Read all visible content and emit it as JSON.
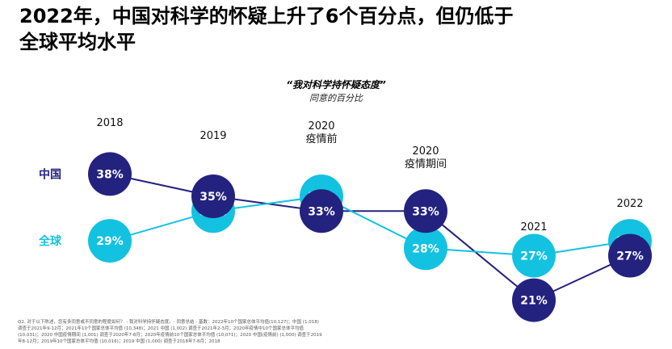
{
  "headline": {
    "line1": "2022年，中国对科学的怀疑上升了6个百分点，但仍低于",
    "line2": "全球平均水平"
  },
  "chart_data": {
    "type": "line",
    "title": "“我对科学持怀疑态度”",
    "subtitle": "同意的百分比",
    "categories": [
      [
        "2018"
      ],
      [
        "2019"
      ],
      [
        "2020",
        "疫情前"
      ],
      [
        "2020",
        "疫情期间"
      ],
      [
        "2021"
      ],
      [
        "2022"
      ]
    ],
    "series": [
      {
        "name": "中国",
        "values": [
          38,
          35,
          33,
          33,
          21,
          27
        ],
        "labels": [
          "38%",
          "35%",
          "33%",
          "33%",
          "21%",
          "27%"
        ],
        "color": "#24227f",
        "label_color": "#24227f"
      },
      {
        "name": "全球",
        "values": [
          29,
          33,
          35,
          28,
          27,
          29
        ],
        "labels": [
          "29%",
          "33%",
          "35%",
          "28%",
          "27%",
          "29%"
        ],
        "color": "#13c2e0",
        "label_color": "#13c2e0"
      }
    ],
    "ylim": [
      19,
      40
    ],
    "grid": false,
    "legend": "left"
  },
  "footnote": "Q2. 对于以下陈述，您有多同意或不同意的程度如何？ - 我对科学持怀疑态度。- 同意总结 - 基数：2022年10个国家总体平均值(10,127)；中国 (1,018) 调查于2021年9-12月；2021年10个国家总体平均值 (10,348)；2021 中国 (1,002) 调查于2021年2-3月；2020年疫情中10个国家总体平均值 (10,031)；2020 中国疫情期间 (1,001) 调查于2020年7-8月；2020年疫情前10个国家总体平均值 (10,071)；2020 中国(疫情前) (1,000) 调查于2019年8-12月；2019年10个国家总体平均值 (10,016)；2019 中国 (1,000) 调查于2018年7-8月；2018"
}
